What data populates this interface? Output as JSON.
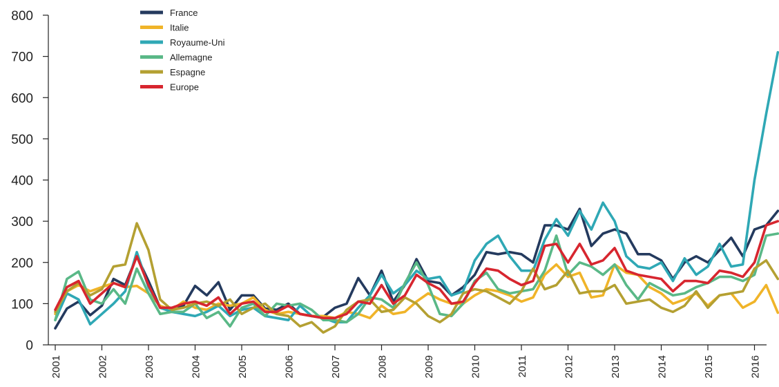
{
  "chart_data": {
    "type": "line",
    "title": "",
    "xlabel": "",
    "ylabel": "",
    "ylim": [
      0,
      800
    ],
    "yticks": [
      "0",
      "100",
      "200",
      "300",
      "400",
      "500",
      "600",
      "700",
      "800"
    ],
    "xticks": [
      "2001",
      "2002",
      "2003",
      "2004",
      "2005",
      "2006",
      "2007",
      "2008",
      "2009",
      "2010",
      "2011",
      "2012",
      "2013",
      "2014",
      "2015",
      "2016"
    ],
    "x_start_year": 2001,
    "points_per_year": 4,
    "grid": false,
    "legend_position": "top-left",
    "series": [
      {
        "name": "France",
        "color": "#243a5e",
        "values": [
          40,
          88,
          105,
          72,
          95,
          160,
          145,
          215,
          155,
          90,
          85,
          95,
          143,
          120,
          152,
          85,
          120,
          120,
          88,
          85,
          100,
          75,
          70,
          68,
          90,
          100,
          162,
          120,
          180,
          105,
          145,
          208,
          155,
          150,
          120,
          140,
          170,
          225,
          220,
          225,
          220,
          200,
          290,
          290,
          280,
          330,
          240,
          270,
          280,
          270,
          220,
          220,
          205,
          160,
          200,
          215,
          200,
          230,
          260,
          215,
          280,
          290,
          325
        ]
      },
      {
        "name": "Italie",
        "color": "#f0b429",
        "values": [
          75,
          130,
          145,
          130,
          140,
          150,
          140,
          143,
          125,
          95,
          85,
          105,
          90,
          85,
          100,
          95,
          100,
          115,
          85,
          75,
          80,
          75,
          70,
          70,
          65,
          80,
          75,
          65,
          95,
          75,
          80,
          105,
          125,
          110,
          100,
          100,
          120,
          135,
          130,
          120,
          105,
          115,
          170,
          195,
          165,
          175,
          115,
          120,
          195,
          175,
          170,
          140,
          125,
          100,
          110,
          125,
          95,
          120,
          125,
          90,
          105,
          145,
          78
        ]
      },
      {
        "name": "Royaume-Uni",
        "color": "#2fa8b5",
        "values": [
          60,
          125,
          110,
          50,
          75,
          100,
          130,
          225,
          140,
          90,
          80,
          75,
          70,
          80,
          95,
          70,
          85,
          90,
          70,
          65,
          60,
          95,
          70,
          65,
          55,
          55,
          90,
          120,
          170,
          125,
          145,
          180,
          160,
          165,
          120,
          130,
          205,
          245,
          265,
          215,
          180,
          180,
          255,
          305,
          265,
          325,
          280,
          345,
          300,
          215,
          190,
          185,
          200,
          155,
          210,
          170,
          190,
          245,
          190,
          195,
          400,
          560,
          710
        ]
      },
      {
        "name": "Allemagne",
        "color": "#5ab887",
        "values": [
          60,
          160,
          178,
          110,
          100,
          135,
          100,
          185,
          125,
          75,
          80,
          80,
          100,
          65,
          80,
          45,
          90,
          100,
          70,
          100,
          95,
          100,
          85,
          60,
          60,
          55,
          75,
          115,
          110,
          90,
          150,
          200,
          145,
          75,
          70,
          100,
          155,
          175,
          135,
          125,
          130,
          135,
          180,
          265,
          170,
          200,
          190,
          170,
          195,
          145,
          110,
          150,
          135,
          120,
          125,
          140,
          150,
          165,
          165,
          155,
          170,
          265,
          270
        ]
      },
      {
        "name": "Espagne",
        "color": "#b4a032",
        "values": [
          80,
          130,
          150,
          120,
          135,
          190,
          195,
          295,
          230,
          110,
          85,
          90,
          100,
          105,
          95,
          110,
          75,
          90,
          100,
          75,
          70,
          45,
          55,
          30,
          45,
          85,
          105,
          110,
          80,
          85,
          115,
          100,
          70,
          55,
          75,
          125,
          135,
          130,
          115,
          100,
          130,
          185,
          135,
          145,
          180,
          125,
          130,
          130,
          145,
          100,
          105,
          110,
          90,
          80,
          95,
          130,
          90,
          120,
          125,
          130,
          185,
          205,
          160
        ]
      },
      {
        "name": "Europe",
        "color": "#d7262f",
        "values": [
          85,
          140,
          155,
          100,
          125,
          150,
          140,
          215,
          145,
          90,
          90,
          100,
          105,
          95,
          115,
          75,
          100,
          105,
          80,
          80,
          95,
          75,
          70,
          65,
          65,
          75,
          105,
          100,
          145,
          100,
          120,
          170,
          150,
          135,
          100,
          105,
          150,
          185,
          180,
          160,
          145,
          155,
          240,
          245,
          200,
          245,
          195,
          205,
          235,
          180,
          170,
          165,
          160,
          130,
          155,
          155,
          150,
          180,
          175,
          165,
          200,
          290,
          300
        ]
      }
    ]
  }
}
